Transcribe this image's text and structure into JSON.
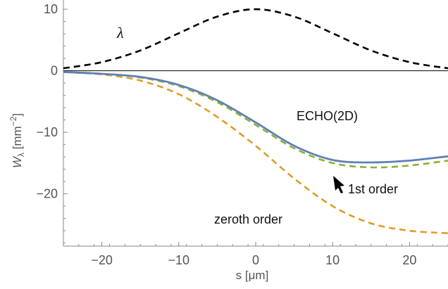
{
  "chart_data": {
    "type": "line",
    "xlabel": "s [μm]",
    "ylabel": {
      "main": "W",
      "sub": "λ",
      "unit": " [mm",
      "exp": "−2",
      "close": "]"
    },
    "xlim": [
      -25,
      25
    ],
    "ylim": [
      -28.5,
      11.5
    ],
    "xticks": [
      -20,
      -10,
      0,
      10,
      20
    ],
    "yticks": [
      10,
      0,
      -10,
      -20
    ],
    "grid": false,
    "colors": {
      "lambda": "#000000",
      "echo": "#5E81B5",
      "first": "#8FB032",
      "zeroth": "#E19C24",
      "zero_line": "#000000",
      "axis": "#888888"
    },
    "series": [
      {
        "key": "lambda",
        "style": "dashed",
        "x": [
          -25,
          -20,
          -15,
          -10,
          -5,
          0,
          5,
          10,
          15,
          20,
          25
        ],
        "y": [
          0.4,
          1.4,
          3.3,
          6.1,
          8.8,
          10.0,
          8.8,
          6.1,
          3.3,
          1.4,
          0.4
        ]
      },
      {
        "key": "zeroth",
        "style": "dashed",
        "x": [
          -25,
          -20,
          -15,
          -10,
          -5,
          0,
          5,
          10,
          15,
          20,
          25
        ],
        "y": [
          -0.2,
          -0.6,
          -1.6,
          -3.8,
          -7.5,
          -12.2,
          -17.5,
          -22.0,
          -24.8,
          -26.0,
          -26.4
        ]
      },
      {
        "key": "first",
        "style": "dashed",
        "x": [
          -25,
          -20,
          -15,
          -10,
          -5,
          0,
          5,
          10,
          15,
          20,
          25
        ],
        "y": [
          -0.2,
          -0.5,
          -1.1,
          -2.5,
          -5.1,
          -8.8,
          -12.6,
          -15.0,
          -15.7,
          -15.4,
          -14.6
        ]
      },
      {
        "key": "echo",
        "style": "solid",
        "x": [
          -25,
          -20,
          -15,
          -10,
          -5,
          0,
          5,
          10,
          15,
          20,
          25
        ],
        "y": [
          -0.2,
          -0.5,
          -1.0,
          -2.3,
          -4.8,
          -8.4,
          -12.2,
          -14.5,
          -14.9,
          -14.6,
          -13.9
        ]
      }
    ],
    "annotations": {
      "lambda": "λ",
      "echo": "ECHO(2D)",
      "first": "1st order",
      "zeroth": "zeroth order"
    }
  }
}
